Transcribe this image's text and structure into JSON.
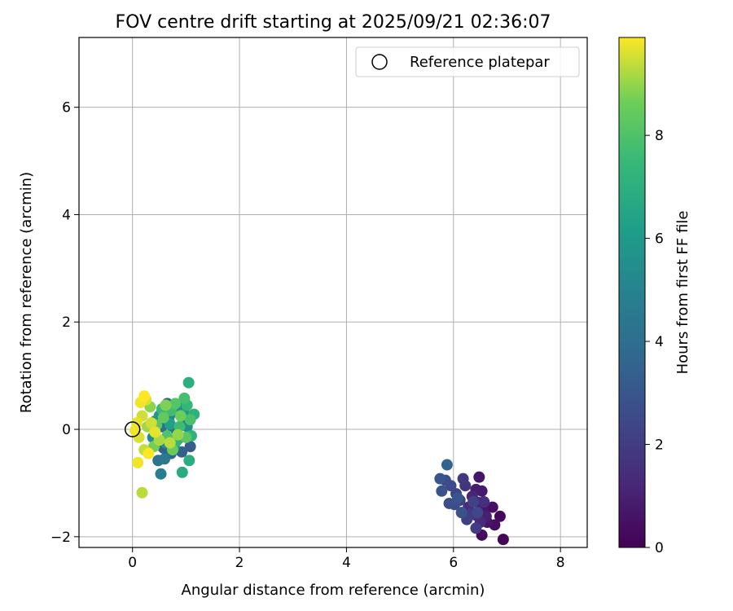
{
  "chart_data": {
    "type": "scatter",
    "title": "FOV centre drift starting at 2025/09/21 02:36:07",
    "xlabel": "Angular distance from reference (arcmin)",
    "ylabel": "Rotation from reference (arcmin)",
    "xlim": [
      -1.0,
      8.5
    ],
    "ylim": [
      -2.2,
      7.3
    ],
    "xticks": [
      0,
      2,
      4,
      6,
      8
    ],
    "yticks": [
      -2,
      0,
      2,
      4,
      6
    ],
    "xtick_labels": [
      "0",
      "2",
      "4",
      "6",
      "8"
    ],
    "ytick_labels": [
      "−2",
      "0",
      "2",
      "4",
      "6"
    ],
    "grid": true,
    "legend": {
      "location": "top-right",
      "entries": [
        {
          "label": "Reference platepar",
          "marker": "hollow-circle",
          "color": "#000000"
        }
      ]
    },
    "reference_point": {
      "x": 0,
      "y": 0
    },
    "colorbar": {
      "label": "Hours from first FF file",
      "colormap": "viridis",
      "vmin": 0,
      "vmax": 9.9,
      "ticks": [
        0,
        2,
        4,
        6,
        8
      ],
      "tick_labels": [
        "0",
        "2",
        "4",
        "6",
        "8"
      ]
    },
    "series": [
      {
        "name": "FOV centre",
        "points": [
          {
            "x": 6.93,
            "y": -2.05,
            "c": 0.1
          },
          {
            "x": 6.53,
            "y": -1.97,
            "c": 0.3
          },
          {
            "x": 6.87,
            "y": -1.62,
            "c": 0.3
          },
          {
            "x": 6.77,
            "y": -1.78,
            "c": 0.4
          },
          {
            "x": 6.73,
            "y": -1.45,
            "c": 0.5
          },
          {
            "x": 6.63,
            "y": -1.73,
            "c": 0.6
          },
          {
            "x": 6.55,
            "y": -1.52,
            "c": 0.7
          },
          {
            "x": 6.48,
            "y": -0.89,
            "c": 0.7
          },
          {
            "x": 6.53,
            "y": -1.15,
            "c": 0.8
          },
          {
            "x": 6.42,
            "y": -1.12,
            "c": 0.9
          },
          {
            "x": 6.61,
            "y": -1.62,
            "c": 1.0
          },
          {
            "x": 6.45,
            "y": -1.36,
            "c": 1.1
          },
          {
            "x": 6.35,
            "y": -1.25,
            "c": 1.2
          },
          {
            "x": 6.5,
            "y": -1.73,
            "c": 1.3
          },
          {
            "x": 6.28,
            "y": -1.45,
            "c": 1.4
          },
          {
            "x": 6.57,
            "y": -1.35,
            "c": 1.5
          },
          {
            "x": 6.42,
            "y": -1.6,
            "c": 1.6
          },
          {
            "x": 6.22,
            "y": -1.05,
            "c": 1.7
          },
          {
            "x": 6.18,
            "y": -0.92,
            "c": 1.8
          },
          {
            "x": 6.32,
            "y": -1.58,
            "c": 1.9
          },
          {
            "x": 6.42,
            "y": -1.84,
            "c": 2.0
          },
          {
            "x": 6.25,
            "y": -1.68,
            "c": 2.1
          },
          {
            "x": 6.12,
            "y": -1.32,
            "c": 2.1
          },
          {
            "x": 6.37,
            "y": -1.35,
            "c": 2.2
          },
          {
            "x": 6.05,
            "y": -1.2,
            "c": 2.3
          },
          {
            "x": 6.45,
            "y": -1.55,
            "c": 2.4
          },
          {
            "x": 5.95,
            "y": -1.05,
            "c": 2.5
          },
          {
            "x": 5.85,
            "y": -0.95,
            "c": 2.6
          },
          {
            "x": 6.02,
            "y": -1.4,
            "c": 2.6
          },
          {
            "x": 5.92,
            "y": -1.38,
            "c": 2.7
          },
          {
            "x": 6.15,
            "y": -1.55,
            "c": 2.8
          },
          {
            "x": 5.78,
            "y": -1.15,
            "c": 2.9
          },
          {
            "x": 5.75,
            "y": -0.92,
            "c": 3.0
          },
          {
            "x": 6.08,
            "y": -1.28,
            "c": 3.0
          },
          {
            "x": 5.88,
            "y": -0.66,
            "c": 3.6
          },
          {
            "x": 1.08,
            "y": -0.32,
            "c": 3.3
          },
          {
            "x": 0.92,
            "y": -0.42,
            "c": 3.4
          },
          {
            "x": 0.58,
            "y": -0.35,
            "c": 3.5
          },
          {
            "x": 0.72,
            "y": -0.45,
            "c": 3.6
          },
          {
            "x": 0.45,
            "y": -0.28,
            "c": 3.7
          },
          {
            "x": 0.65,
            "y": 0.48,
            "c": 3.8
          },
          {
            "x": 0.85,
            "y": -0.18,
            "c": 3.9
          },
          {
            "x": 0.55,
            "y": 0.05,
            "c": 4.0
          },
          {
            "x": 0.48,
            "y": -0.58,
            "c": 4.2
          },
          {
            "x": 0.75,
            "y": -0.05,
            "c": 4.3
          },
          {
            "x": 0.95,
            "y": 0.12,
            "c": 4.4
          },
          {
            "x": 0.6,
            "y": -0.55,
            "c": 4.5
          },
          {
            "x": 0.53,
            "y": -0.83,
            "c": 4.8
          },
          {
            "x": 0.42,
            "y": 0.15,
            "c": 4.9
          },
          {
            "x": 0.82,
            "y": 0.32,
            "c": 5.0
          },
          {
            "x": 0.68,
            "y": 0.2,
            "c": 5.2
          },
          {
            "x": 0.38,
            "y": -0.15,
            "c": 5.3
          },
          {
            "x": 1.02,
            "y": 0.05,
            "c": 5.4
          },
          {
            "x": 0.62,
            "y": -0.25,
            "c": 5.5
          },
          {
            "x": 0.88,
            "y": 0.42,
            "c": 5.6
          },
          {
            "x": 0.5,
            "y": 0.25,
            "c": 5.8
          },
          {
            "x": 0.78,
            "y": -0.32,
            "c": 6.0
          },
          {
            "x": 0.98,
            "y": 0.28,
            "c": 6.1
          },
          {
            "x": 0.7,
            "y": 0.1,
            "c": 6.3
          },
          {
            "x": 0.93,
            "y": -0.8,
            "c": 6.8
          },
          {
            "x": 1.06,
            "y": -0.58,
            "c": 6.9
          },
          {
            "x": 1.05,
            "y": 0.87,
            "c": 7.0
          },
          {
            "x": 1.15,
            "y": 0.28,
            "c": 7.1
          },
          {
            "x": 1.1,
            "y": -0.12,
            "c": 7.2
          },
          {
            "x": 0.82,
            "y": -0.22,
            "c": 7.3
          },
          {
            "x": 1.02,
            "y": 0.45,
            "c": 7.4
          },
          {
            "x": 0.55,
            "y": 0.38,
            "c": 7.5
          },
          {
            "x": 0.88,
            "y": 0.05,
            "c": 7.6
          },
          {
            "x": 0.72,
            "y": 0.35,
            "c": 7.7
          },
          {
            "x": 0.97,
            "y": 0.58,
            "c": 7.8
          },
          {
            "x": 1.08,
            "y": 0.18,
            "c": 7.9
          },
          {
            "x": 0.65,
            "y": -0.12,
            "c": 8.0
          },
          {
            "x": 0.8,
            "y": 0.48,
            "c": 8.1
          },
          {
            "x": 0.45,
            "y": 0.08,
            "c": 8.2
          },
          {
            "x": 1.0,
            "y": -0.15,
            "c": 8.3
          },
          {
            "x": 0.58,
            "y": 0.22,
            "c": 8.4
          },
          {
            "x": 0.75,
            "y": -0.38,
            "c": 8.5
          },
          {
            "x": 0.9,
            "y": 0.25,
            "c": 8.6
          },
          {
            "x": 0.4,
            "y": -0.32,
            "c": 8.7
          },
          {
            "x": 0.62,
            "y": 0.45,
            "c": 8.8
          },
          {
            "x": 0.33,
            "y": 0.42,
            "c": 8.9
          },
          {
            "x": 0.85,
            "y": -0.1,
            "c": 9.0
          },
          {
            "x": 0.28,
            "y": 0.05,
            "c": 9.1
          },
          {
            "x": 0.5,
            "y": -0.2,
            "c": 9.2
          },
          {
            "x": 0.7,
            "y": -0.25,
            "c": 9.3
          },
          {
            "x": 0.22,
            "y": -0.38,
            "c": 9.4
          },
          {
            "x": 0.18,
            "y": 0.25,
            "c": 9.5
          },
          {
            "x": 0.35,
            "y": 0.12,
            "c": 9.5
          },
          {
            "x": 0.12,
            "y": -0.15,
            "c": 9.6
          },
          {
            "x": 0.25,
            "y": 0.55,
            "c": 9.6
          },
          {
            "x": 0.08,
            "y": 0.12,
            "c": 9.7
          },
          {
            "x": 0.42,
            "y": -0.05,
            "c": 9.7
          },
          {
            "x": 0.15,
            "y": 0.5,
            "c": 9.8
          },
          {
            "x": 0.05,
            "y": -0.02,
            "c": 9.8
          },
          {
            "x": 0.1,
            "y": -0.62,
            "c": 9.8
          },
          {
            "x": 0.18,
            "y": -1.18,
            "c": 9.3
          },
          {
            "x": 0.3,
            "y": -0.45,
            "c": 9.9
          },
          {
            "x": 0.22,
            "y": 0.62,
            "c": 9.9
          }
        ]
      }
    ]
  }
}
